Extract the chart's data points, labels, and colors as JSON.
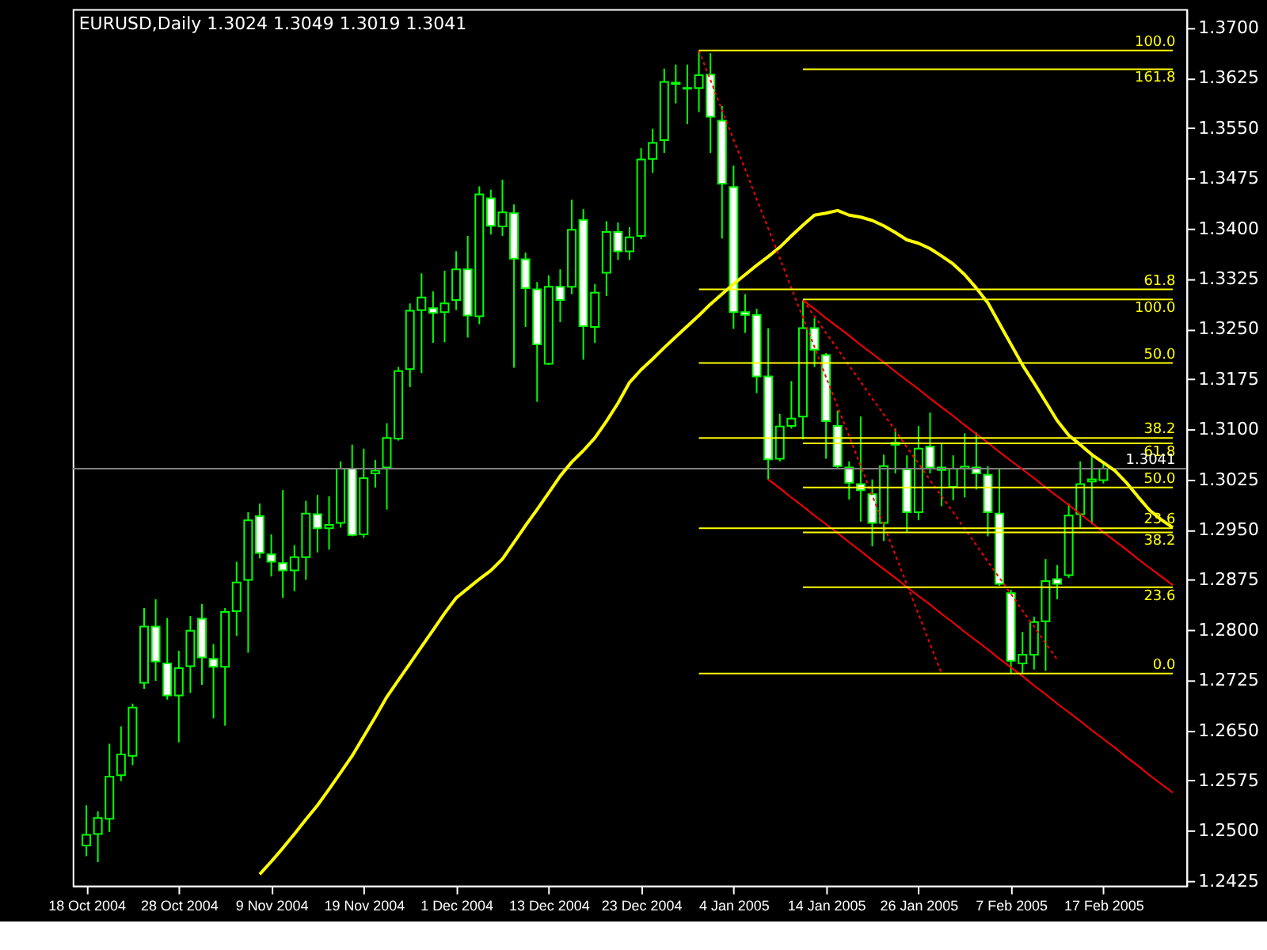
{
  "chart_data": {
    "type": "candlestick",
    "title": "EURUSD,Daily  1.3024 1.3049 1.3019 1.3041",
    "color": "#00ff00",
    "categories": [
      "18 Oct 2004",
      null,
      null,
      null,
      null,
      null,
      null,
      null,
      "28 Oct 2004",
      null,
      null,
      null,
      null,
      null,
      null,
      null,
      "9 Nov 2004",
      null,
      null,
      null,
      null,
      null,
      null,
      null,
      "19 Nov 2004",
      null,
      null,
      null,
      null,
      null,
      null,
      null,
      "1 Dec 2004",
      null,
      null,
      null,
      null,
      null,
      null,
      null,
      "13 Dec 2004",
      null,
      null,
      null,
      null,
      null,
      null,
      null,
      "23 Dec 2004",
      null,
      null,
      null,
      null,
      null,
      null,
      null,
      "4 Jan 2005",
      null,
      null,
      null,
      null,
      null,
      null,
      null,
      "14 Jan 2005",
      null,
      null,
      null,
      null,
      null,
      null,
      null,
      "26 Jan 2005",
      null,
      null,
      null,
      null,
      null,
      null,
      null,
      "7 Feb 2005",
      null,
      null,
      null,
      null,
      null,
      null,
      null,
      "17 Feb 2005",
      null,
      null,
      null,
      null,
      null,
      null
    ],
    "ohlc": [
      [
        1.2478,
        1.2538,
        1.2462,
        1.2494
      ],
      [
        1.2495,
        1.2529,
        1.2453,
        1.2519
      ],
      [
        1.2518,
        1.263,
        1.2498,
        1.2581
      ],
      [
        1.2583,
        1.2656,
        1.2574,
        1.2614
      ],
      [
        1.2612,
        1.269,
        1.2598,
        1.2684
      ],
      [
        1.2721,
        1.2833,
        1.2712,
        1.2805
      ],
      [
        1.2805,
        1.2846,
        1.2724,
        1.2753
      ],
      [
        1.275,
        1.2818,
        1.2696,
        1.2702
      ],
      [
        1.2702,
        1.2769,
        1.2632,
        1.2743
      ],
      [
        1.2746,
        1.2821,
        1.2706,
        1.2799
      ],
      [
        1.2817,
        1.2839,
        1.2718,
        1.2759
      ],
      [
        1.2757,
        1.2779,
        1.2668,
        1.2745
      ],
      [
        1.2745,
        1.2833,
        1.2657,
        1.2827
      ],
      [
        1.2828,
        1.2902,
        1.2791,
        1.2871
      ],
      [
        1.2875,
        1.2976,
        1.2766,
        1.2964
      ],
      [
        1.297,
        1.2989,
        1.2907,
        1.2915
      ],
      [
        1.2913,
        1.2943,
        1.288,
        1.2902
      ],
      [
        1.29,
        1.3009,
        1.2848,
        1.2889
      ],
      [
        1.2889,
        1.2927,
        1.2858,
        1.2909
      ],
      [
        1.2909,
        1.2993,
        1.2875,
        1.2974
      ],
      [
        1.2973,
        1.3002,
        1.2916,
        1.2952
      ],
      [
        1.2952,
        1.3,
        1.292,
        1.2957
      ],
      [
        1.296,
        1.3052,
        1.2953,
        1.3041
      ],
      [
        1.3041,
        1.3077,
        1.294,
        1.2942
      ],
      [
        1.2943,
        1.3071,
        1.2938,
        1.3027
      ],
      [
        1.3034,
        1.3054,
        1.3013,
        1.3038
      ],
      [
        1.3043,
        1.3109,
        1.298,
        1.3087
      ],
      [
        1.3086,
        1.3193,
        1.3083,
        1.3187
      ],
      [
        1.319,
        1.3288,
        1.3163,
        1.3277
      ],
      [
        1.3278,
        1.3333,
        1.3184,
        1.3297
      ],
      [
        1.3281,
        1.3306,
        1.3229,
        1.3274
      ],
      [
        1.3275,
        1.3337,
        1.323,
        1.3288
      ],
      [
        1.3293,
        1.3366,
        1.3278,
        1.3339
      ],
      [
        1.3339,
        1.3389,
        1.3237,
        1.327
      ],
      [
        1.3269,
        1.3463,
        1.3257,
        1.3451
      ],
      [
        1.3445,
        1.3458,
        1.3391,
        1.3404
      ],
      [
        1.3403,
        1.3473,
        1.3389,
        1.3424
      ],
      [
        1.3423,
        1.3436,
        1.3192,
        1.3355
      ],
      [
        1.3354,
        1.3364,
        1.3253,
        1.3311
      ],
      [
        1.3309,
        1.332,
        1.3141,
        1.3227
      ],
      [
        1.3198,
        1.333,
        1.3196,
        1.3313
      ],
      [
        1.3313,
        1.3339,
        1.326,
        1.3293
      ],
      [
        1.3313,
        1.3443,
        1.3302,
        1.3398
      ],
      [
        1.3413,
        1.3429,
        1.3204,
        1.3254
      ],
      [
        1.3253,
        1.3317,
        1.3229,
        1.3304
      ],
      [
        1.3334,
        1.3411,
        1.3299,
        1.3395
      ],
      [
        1.3395,
        1.3409,
        1.3353,
        1.3366
      ],
      [
        1.3366,
        1.3402,
        1.3353,
        1.3387
      ],
      [
        1.3389,
        1.352,
        1.3384,
        1.3503
      ],
      [
        1.3504,
        1.3549,
        1.3483,
        1.3528
      ],
      [
        1.3532,
        1.3639,
        1.3513,
        1.3619
      ],
      [
        1.3616,
        1.3645,
        1.3587,
        1.3618
      ],
      [
        1.361,
        1.3645,
        1.3556,
        1.3609
      ],
      [
        1.361,
        1.3666,
        1.3574,
        1.3629
      ],
      [
        1.363,
        1.3662,
        1.3513,
        1.3567
      ],
      [
        1.3561,
        1.3583,
        1.3385,
        1.3467
      ],
      [
        1.3462,
        1.3494,
        1.325,
        1.3275
      ],
      [
        1.3275,
        1.3302,
        1.3244,
        1.3271
      ],
      [
        1.3271,
        1.328,
        1.3154,
        1.3179
      ],
      [
        1.3179,
        1.3251,
        1.3025,
        1.3055
      ],
      [
        1.3056,
        1.3123,
        1.3052,
        1.3104
      ],
      [
        1.3105,
        1.3172,
        1.3101,
        1.3116
      ],
      [
        1.3119,
        1.3293,
        1.3085,
        1.3251
      ],
      [
        1.3251,
        1.3266,
        1.3193,
        1.3219
      ],
      [
        1.3211,
        1.3214,
        1.3056,
        1.3112
      ],
      [
        1.3105,
        1.3128,
        1.3041,
        1.3045
      ],
      [
        1.3043,
        1.3052,
        1.2995,
        1.302
      ],
      [
        1.3018,
        1.3119,
        1.2962,
        1.3009
      ],
      [
        1.3003,
        1.3025,
        1.2925,
        1.296
      ],
      [
        1.296,
        1.3062,
        1.2933,
        1.3045
      ],
      [
        1.3077,
        1.3101,
        1.3034,
        1.308
      ],
      [
        1.304,
        1.3061,
        1.2946,
        1.2976
      ],
      [
        1.2976,
        1.3105,
        1.2964,
        1.3071
      ],
      [
        1.3074,
        1.3125,
        1.3034,
        1.3043
      ],
      [
        1.3043,
        1.308,
        1.2985,
        1.3039
      ],
      [
        1.3014,
        1.3061,
        1.2994,
        1.3041
      ],
      [
        1.3041,
        1.3094,
        1.2998,
        1.3044
      ],
      [
        1.3043,
        1.3095,
        1.301,
        1.3034
      ],
      [
        1.3032,
        1.3045,
        1.294,
        1.2976
      ],
      [
        1.2974,
        1.3041,
        1.2866,
        1.2869
      ],
      [
        1.2855,
        1.286,
        1.2735,
        1.2754
      ],
      [
        1.275,
        1.2797,
        1.2735,
        1.2763
      ],
      [
        1.2763,
        1.282,
        1.2741,
        1.2812
      ],
      [
        1.2813,
        1.2906,
        1.2739,
        1.2873
      ],
      [
        1.2876,
        1.2897,
        1.2846,
        1.2869
      ],
      [
        1.2882,
        1.2989,
        1.2878,
        1.2971
      ],
      [
        1.2973,
        1.3052,
        1.2953,
        1.3018
      ],
      [
        1.3022,
        1.3061,
        1.2958,
        1.3025
      ],
      [
        1.3024,
        1.3049,
        1.3019,
        1.3041
      ],
      null,
      null,
      null,
      null,
      null,
      null
    ],
    "series": [
      {
        "type": "line",
        "color": "#ffff00",
        "values": [
          null,
          null,
          null,
          null,
          null,
          null,
          null,
          null,
          null,
          null,
          null,
          null,
          null,
          null,
          null,
          1.2435,
          1.2454,
          1.2474,
          1.2495,
          1.2517,
          1.2538,
          1.2562,
          1.2587,
          1.2612,
          1.2641,
          1.267,
          1.27,
          1.2725,
          1.275,
          1.2775,
          1.28,
          1.2825,
          1.2848,
          1.2862,
          1.2876,
          1.2889,
          1.2906,
          1.2931,
          1.2956,
          1.298,
          1.3005,
          1.303,
          1.3051,
          1.3068,
          1.3087,
          1.3112,
          1.3139,
          1.317,
          1.3189,
          1.3205,
          1.3222,
          1.3238,
          1.3254,
          1.327,
          1.3287,
          1.3302,
          1.3317,
          1.3331,
          1.3345,
          1.3358,
          1.3372,
          1.3389,
          1.3405,
          1.342,
          1.3423,
          1.3427,
          1.342,
          1.3417,
          1.3412,
          1.3404,
          1.3394,
          1.3383,
          1.3378,
          1.337,
          1.3359,
          1.3347,
          1.3331,
          1.3311,
          1.3289,
          1.3258,
          1.3227,
          1.3196,
          1.3169,
          1.3141,
          1.3113,
          1.3091,
          1.3077,
          1.3062,
          1.305,
          1.3038,
          1.302,
          1.2999,
          1.2979,
          1.2965,
          1.2953
        ]
      },
      {
        "type": "line",
        "color": "#ff0000",
        "line_style": "dotted",
        "values": [
          null,
          null,
          null,
          null,
          null,
          null,
          null,
          null,
          null,
          null,
          null,
          null,
          null,
          null,
          null,
          null,
          null,
          null,
          null,
          null,
          null,
          null,
          null,
          null,
          null,
          null,
          null,
          null,
          null,
          null,
          null,
          null,
          null,
          null,
          null,
          null,
          null,
          null,
          null,
          null,
          null,
          null,
          null,
          null,
          null,
          null,
          null,
          null,
          null,
          null,
          null,
          null,
          null,
          1.3666,
          1.3622,
          1.3577,
          1.3533,
          1.3489,
          1.3444,
          1.34,
          1.3356,
          1.3311,
          1.3267,
          1.3223,
          1.3178,
          1.3134,
          1.309,
          1.3045,
          1.3001,
          1.2957,
          1.2912,
          1.2868,
          1.2824,
          1.2779,
          1.2735,
          null,
          null,
          null,
          null,
          null,
          null,
          null,
          null,
          null,
          null,
          null,
          null,
          null,
          null,
          null,
          null,
          null,
          null,
          null,
          null
        ]
      },
      {
        "type": "line",
        "color": "#ff0000",
        "line_style": "dotted",
        "values": [
          null,
          null,
          null,
          null,
          null,
          null,
          null,
          null,
          null,
          null,
          null,
          null,
          null,
          null,
          null,
          null,
          null,
          null,
          null,
          null,
          null,
          null,
          null,
          null,
          null,
          null,
          null,
          null,
          null,
          null,
          null,
          null,
          null,
          null,
          null,
          null,
          null,
          null,
          null,
          null,
          null,
          null,
          null,
          null,
          null,
          null,
          null,
          null,
          null,
          null,
          null,
          null,
          null,
          null,
          null,
          null,
          null,
          null,
          null,
          null,
          null,
          null,
          1.3293,
          1.3269,
          1.3244,
          1.322,
          1.3195,
          1.3171,
          1.3146,
          1.3122,
          1.3098,
          1.3073,
          1.3049,
          1.3024,
          1.3,
          1.2976,
          1.2951,
          1.2927,
          1.2902,
          1.2878,
          1.2854,
          1.2829,
          1.2805,
          1.278,
          1.2756,
          null,
          null,
          null,
          null,
          null,
          null,
          null,
          null,
          null,
          null
        ]
      },
      {
        "type": "line",
        "color": "#ff0000",
        "line_style": "solid",
        "values": [
          null,
          null,
          null,
          null,
          null,
          null,
          null,
          null,
          null,
          null,
          null,
          null,
          null,
          null,
          null,
          null,
          null,
          null,
          null,
          null,
          null,
          null,
          null,
          null,
          null,
          null,
          null,
          null,
          null,
          null,
          null,
          null,
          null,
          null,
          null,
          null,
          null,
          null,
          null,
          null,
          null,
          null,
          null,
          null,
          null,
          null,
          null,
          null,
          null,
          null,
          null,
          null,
          null,
          null,
          null,
          null,
          null,
          null,
          null,
          null,
          null,
          null,
          1.3293,
          1.328,
          1.3266,
          1.3253,
          1.324,
          1.3226,
          1.3213,
          1.32,
          1.3186,
          1.3173,
          1.316,
          1.3146,
          1.3133,
          1.312,
          1.3106,
          1.3093,
          1.308,
          1.3066,
          1.3053,
          1.304,
          1.3027,
          1.3013,
          1.3,
          1.2987,
          1.2973,
          1.296,
          1.2946,
          1.2933,
          1.292,
          1.2906,
          1.2893,
          1.288,
          1.2867
        ]
      },
      {
        "type": "line",
        "color": "#ff0000",
        "line_style": "solid",
        "values": [
          null,
          null,
          null,
          null,
          null,
          null,
          null,
          null,
          null,
          null,
          null,
          null,
          null,
          null,
          null,
          null,
          null,
          null,
          null,
          null,
          null,
          null,
          null,
          null,
          null,
          null,
          null,
          null,
          null,
          null,
          null,
          null,
          null,
          null,
          null,
          null,
          null,
          null,
          null,
          null,
          null,
          null,
          null,
          null,
          null,
          null,
          null,
          null,
          null,
          null,
          null,
          null,
          null,
          null,
          null,
          null,
          null,
          null,
          null,
          1.3025,
          1.3012,
          1.2998,
          1.2985,
          1.2971,
          1.2958,
          1.2945,
          1.2931,
          1.2918,
          1.2904,
          1.2891,
          1.2878,
          1.2864,
          1.2851,
          1.2838,
          1.2824,
          1.2811,
          1.2797,
          1.2784,
          1.2771,
          1.2757,
          1.2744,
          1.2731,
          1.2717,
          1.2704,
          1.269,
          1.2677,
          1.2664,
          1.265,
          1.2637,
          1.2624,
          1.261,
          1.2597,
          1.2583,
          1.257,
          1.2557
        ]
      },
      {
        "type": "line",
        "name": "100.0",
        "color": "#ffff00",
        "values": [
          null,
          null,
          null,
          null,
          null,
          null,
          null,
          null,
          null,
          null,
          null,
          null,
          null,
          null,
          null,
          null,
          null,
          null,
          null,
          null,
          null,
          null,
          null,
          null,
          null,
          null,
          null,
          null,
          null,
          null,
          null,
          null,
          null,
          null,
          null,
          null,
          null,
          null,
          null,
          null,
          null,
          null,
          null,
          null,
          null,
          null,
          null,
          null,
          null,
          null,
          null,
          null,
          null,
          1.3666,
          1.3666,
          1.3666,
          1.3666,
          1.3666,
          1.3666,
          1.3666,
          1.3666,
          1.3666,
          1.3666,
          1.3666,
          1.3666,
          1.3666,
          1.3666,
          1.3666,
          1.3666,
          1.3666,
          1.3666,
          1.3666,
          1.3666,
          1.3666,
          1.3666,
          1.3666,
          1.3666,
          1.3666,
          1.3666,
          1.3666,
          1.3666,
          1.3666,
          1.3666,
          1.3666,
          1.3666,
          1.3666,
          1.3666,
          1.3666,
          1.3666,
          1.3666,
          1.3666,
          1.3666,
          1.3666,
          1.3666,
          1.3666
        ]
      },
      {
        "type": "line",
        "name": "161.8",
        "color": "#ffff00",
        "values": [
          null,
          null,
          null,
          null,
          null,
          null,
          null,
          null,
          null,
          null,
          null,
          null,
          null,
          null,
          null,
          null,
          null,
          null,
          null,
          null,
          null,
          null,
          null,
          null,
          null,
          null,
          null,
          null,
          null,
          null,
          null,
          null,
          null,
          null,
          null,
          null,
          null,
          null,
          null,
          null,
          null,
          null,
          null,
          null,
          null,
          null,
          null,
          null,
          null,
          null,
          null,
          null,
          null,
          null,
          null,
          null,
          null,
          null,
          null,
          null,
          null,
          null,
          1.3638,
          1.3638,
          1.3638,
          1.3638,
          1.3638,
          1.3638,
          1.3638,
          1.3638,
          1.3638,
          1.3638,
          1.3638,
          1.3638,
          1.3638,
          1.3638,
          1.3638,
          1.3638,
          1.3638,
          1.3638,
          1.3638,
          1.3638,
          1.3638,
          1.3638,
          1.3638,
          1.3638,
          1.3638,
          1.3638,
          1.3638,
          1.3638,
          1.3638,
          1.3638,
          1.3638,
          1.3638,
          1.3638
        ]
      },
      {
        "type": "line",
        "name": "61.8",
        "color": "#ffff00",
        "values": [
          null,
          null,
          null,
          null,
          null,
          null,
          null,
          null,
          null,
          null,
          null,
          null,
          null,
          null,
          null,
          null,
          null,
          null,
          null,
          null,
          null,
          null,
          null,
          null,
          null,
          null,
          null,
          null,
          null,
          null,
          null,
          null,
          null,
          null,
          null,
          null,
          null,
          null,
          null,
          null,
          null,
          null,
          null,
          null,
          null,
          null,
          null,
          null,
          null,
          null,
          null,
          null,
          null,
          1.3309,
          1.3309,
          1.3309,
          1.3309,
          1.3309,
          1.3309,
          1.3309,
          1.3309,
          1.3309,
          1.3309,
          1.3309,
          1.3309,
          1.3309,
          1.3309,
          1.3309,
          1.3309,
          1.3309,
          1.3309,
          1.3309,
          1.3309,
          1.3309,
          1.3309,
          1.3309,
          1.3309,
          1.3309,
          1.3309,
          1.3309,
          1.3309,
          1.3309,
          1.3309,
          1.3309,
          1.3309,
          1.3309,
          1.3309,
          1.3309,
          1.3309,
          1.3309,
          1.3309,
          1.3309,
          1.3309,
          1.3309,
          1.3309
        ]
      },
      {
        "type": "line",
        "name": "100.0",
        "color": "#ffff00",
        "values": [
          null,
          null,
          null,
          null,
          null,
          null,
          null,
          null,
          null,
          null,
          null,
          null,
          null,
          null,
          null,
          null,
          null,
          null,
          null,
          null,
          null,
          null,
          null,
          null,
          null,
          null,
          null,
          null,
          null,
          null,
          null,
          null,
          null,
          null,
          null,
          null,
          null,
          null,
          null,
          null,
          null,
          null,
          null,
          null,
          null,
          null,
          null,
          null,
          null,
          null,
          null,
          null,
          null,
          null,
          null,
          null,
          null,
          null,
          null,
          null,
          null,
          null,
          1.3294,
          1.3294,
          1.3294,
          1.3294,
          1.3294,
          1.3294,
          1.3294,
          1.3294,
          1.3294,
          1.3294,
          1.3294,
          1.3294,
          1.3294,
          1.3294,
          1.3294,
          1.3294,
          1.3294,
          1.3294,
          1.3294,
          1.3294,
          1.3294,
          1.3294,
          1.3294,
          1.3294,
          1.3294,
          1.3294,
          1.3294,
          1.3294,
          1.3294,
          1.3294,
          1.3294,
          1.3294,
          1.3294
        ]
      },
      {
        "type": "line",
        "name": "50.0",
        "color": "#ffff00",
        "values": [
          null,
          null,
          null,
          null,
          null,
          null,
          null,
          null,
          null,
          null,
          null,
          null,
          null,
          null,
          null,
          null,
          null,
          null,
          null,
          null,
          null,
          null,
          null,
          null,
          null,
          null,
          null,
          null,
          null,
          null,
          null,
          null,
          null,
          null,
          null,
          null,
          null,
          null,
          null,
          null,
          null,
          null,
          null,
          null,
          null,
          null,
          null,
          null,
          null,
          null,
          null,
          null,
          null,
          1.3199,
          1.3199,
          1.3199,
          1.3199,
          1.3199,
          1.3199,
          1.3199,
          1.3199,
          1.3199,
          1.3199,
          1.3199,
          1.3199,
          1.3199,
          1.3199,
          1.3199,
          1.3199,
          1.3199,
          1.3199,
          1.3199,
          1.3199,
          1.3199,
          1.3199,
          1.3199,
          1.3199,
          1.3199,
          1.3199,
          1.3199,
          1.3199,
          1.3199,
          1.3199,
          1.3199,
          1.3199,
          1.3199,
          1.3199,
          1.3199,
          1.3199,
          1.3199,
          1.3199,
          1.3199,
          1.3199,
          1.3199,
          1.3199
        ]
      },
      {
        "type": "line",
        "name": "38.2",
        "color": "#ffff00",
        "values": [
          null,
          null,
          null,
          null,
          null,
          null,
          null,
          null,
          null,
          null,
          null,
          null,
          null,
          null,
          null,
          null,
          null,
          null,
          null,
          null,
          null,
          null,
          null,
          null,
          null,
          null,
          null,
          null,
          null,
          null,
          null,
          null,
          null,
          null,
          null,
          null,
          null,
          null,
          null,
          null,
          null,
          null,
          null,
          null,
          null,
          null,
          null,
          null,
          null,
          null,
          null,
          null,
          null,
          1.3087,
          1.3087,
          1.3087,
          1.3087,
          1.3087,
          1.3087,
          1.3087,
          1.3087,
          1.3087,
          1.3087,
          1.3087,
          1.3087,
          1.3087,
          1.3087,
          1.3087,
          1.3087,
          1.3087,
          1.3087,
          1.3087,
          1.3087,
          1.3087,
          1.3087,
          1.3087,
          1.3087,
          1.3087,
          1.3087,
          1.3087,
          1.3087,
          1.3087,
          1.3087,
          1.3087,
          1.3087,
          1.3087,
          1.3087,
          1.3087,
          1.3087,
          1.3087,
          1.3087,
          1.3087,
          1.3087,
          1.3087,
          1.3087
        ]
      },
      {
        "type": "line",
        "name": "61.8",
        "color": "#ffff00",
        "values": [
          null,
          null,
          null,
          null,
          null,
          null,
          null,
          null,
          null,
          null,
          null,
          null,
          null,
          null,
          null,
          null,
          null,
          null,
          null,
          null,
          null,
          null,
          null,
          null,
          null,
          null,
          null,
          null,
          null,
          null,
          null,
          null,
          null,
          null,
          null,
          null,
          null,
          null,
          null,
          null,
          null,
          null,
          null,
          null,
          null,
          null,
          null,
          null,
          null,
          null,
          null,
          null,
          null,
          null,
          null,
          null,
          null,
          null,
          null,
          null,
          null,
          null,
          1.3079,
          1.3079,
          1.3079,
          1.3079,
          1.3079,
          1.3079,
          1.3079,
          1.3079,
          1.3079,
          1.3079,
          1.3079,
          1.3079,
          1.3079,
          1.3079,
          1.3079,
          1.3079,
          1.3079,
          1.3079,
          1.3079,
          1.3079,
          1.3079,
          1.3079,
          1.3079,
          1.3079,
          1.3079,
          1.3079,
          1.3079,
          1.3079,
          1.3079,
          1.3079,
          1.3079,
          1.3079,
          1.3079
        ]
      },
      {
        "type": "line",
        "name": "50.0",
        "color": "#ffff00",
        "values": [
          null,
          null,
          null,
          null,
          null,
          null,
          null,
          null,
          null,
          null,
          null,
          null,
          null,
          null,
          null,
          null,
          null,
          null,
          null,
          null,
          null,
          null,
          null,
          null,
          null,
          null,
          null,
          null,
          null,
          null,
          null,
          null,
          null,
          null,
          null,
          null,
          null,
          null,
          null,
          null,
          null,
          null,
          null,
          null,
          null,
          null,
          null,
          null,
          null,
          null,
          null,
          null,
          null,
          null,
          null,
          null,
          null,
          null,
          null,
          null,
          null,
          null,
          1.3013,
          1.3013,
          1.3013,
          1.3013,
          1.3013,
          1.3013,
          1.3013,
          1.3013,
          1.3013,
          1.3013,
          1.3013,
          1.3013,
          1.3013,
          1.3013,
          1.3013,
          1.3013,
          1.3013,
          1.3013,
          1.3013,
          1.3013,
          1.3013,
          1.3013,
          1.3013,
          1.3013,
          1.3013,
          1.3013,
          1.3013,
          1.3013,
          1.3013,
          1.3013,
          1.3013,
          1.3013,
          1.3013
        ]
      },
      {
        "type": "line",
        "name": "23.6",
        "color": "#ffff00",
        "values": [
          null,
          null,
          null,
          null,
          null,
          null,
          null,
          null,
          null,
          null,
          null,
          null,
          null,
          null,
          null,
          null,
          null,
          null,
          null,
          null,
          null,
          null,
          null,
          null,
          null,
          null,
          null,
          null,
          null,
          null,
          null,
          null,
          null,
          null,
          null,
          null,
          null,
          null,
          null,
          null,
          null,
          null,
          null,
          null,
          null,
          null,
          null,
          null,
          null,
          null,
          null,
          null,
          null,
          1.2952,
          1.2952,
          1.2952,
          1.2952,
          1.2952,
          1.2952,
          1.2952,
          1.2952,
          1.2952,
          1.2952,
          1.2952,
          1.2952,
          1.2952,
          1.2952,
          1.2952,
          1.2952,
          1.2952,
          1.2952,
          1.2952,
          1.2952,
          1.2952,
          1.2952,
          1.2952,
          1.2952,
          1.2952,
          1.2952,
          1.2952,
          1.2952,
          1.2952,
          1.2952,
          1.2952,
          1.2952,
          1.2952,
          1.2952,
          1.2952,
          1.2952,
          1.2952,
          1.2952,
          1.2952,
          1.2952,
          1.2952,
          1.2952
        ]
      },
      {
        "type": "line",
        "name": "38.2",
        "color": "#ffff00",
        "values": [
          null,
          null,
          null,
          null,
          null,
          null,
          null,
          null,
          null,
          null,
          null,
          null,
          null,
          null,
          null,
          null,
          null,
          null,
          null,
          null,
          null,
          null,
          null,
          null,
          null,
          null,
          null,
          null,
          null,
          null,
          null,
          null,
          null,
          null,
          null,
          null,
          null,
          null,
          null,
          null,
          null,
          null,
          null,
          null,
          null,
          null,
          null,
          null,
          null,
          null,
          null,
          null,
          null,
          null,
          null,
          null,
          null,
          null,
          null,
          null,
          null,
          null,
          1.2946,
          1.2946,
          1.2946,
          1.2946,
          1.2946,
          1.2946,
          1.2946,
          1.2946,
          1.2946,
          1.2946,
          1.2946,
          1.2946,
          1.2946,
          1.2946,
          1.2946,
          1.2946,
          1.2946,
          1.2946,
          1.2946,
          1.2946,
          1.2946,
          1.2946,
          1.2946,
          1.2946,
          1.2946,
          1.2946,
          1.2946,
          1.2946,
          1.2946,
          1.2946,
          1.2946,
          1.2946,
          1.2946
        ]
      },
      {
        "type": "line",
        "name": "23.6",
        "color": "#ffff00",
        "values": [
          null,
          null,
          null,
          null,
          null,
          null,
          null,
          null,
          null,
          null,
          null,
          null,
          null,
          null,
          null,
          null,
          null,
          null,
          null,
          null,
          null,
          null,
          null,
          null,
          null,
          null,
          null,
          null,
          null,
          null,
          null,
          null,
          null,
          null,
          null,
          null,
          null,
          null,
          null,
          null,
          null,
          null,
          null,
          null,
          null,
          null,
          null,
          null,
          null,
          null,
          null,
          null,
          null,
          null,
          null,
          null,
          null,
          null,
          null,
          null,
          null,
          null,
          1.2864,
          1.2864,
          1.2864,
          1.2864,
          1.2864,
          1.2864,
          1.2864,
          1.2864,
          1.2864,
          1.2864,
          1.2864,
          1.2864,
          1.2864,
          1.2864,
          1.2864,
          1.2864,
          1.2864,
          1.2864,
          1.2864,
          1.2864,
          1.2864,
          1.2864,
          1.2864,
          1.2864,
          1.2864,
          1.2864,
          1.2864,
          1.2864,
          1.2864,
          1.2864,
          1.2864,
          1.2864,
          1.2864
        ]
      },
      {
        "type": "line",
        "name": "0.0",
        "color": "#ffff00",
        "values": [
          null,
          null,
          null,
          null,
          null,
          null,
          null,
          null,
          null,
          null,
          null,
          null,
          null,
          null,
          null,
          null,
          null,
          null,
          null,
          null,
          null,
          null,
          null,
          null,
          null,
          null,
          null,
          null,
          null,
          null,
          null,
          null,
          null,
          null,
          null,
          null,
          null,
          null,
          null,
          null,
          null,
          null,
          null,
          null,
          null,
          null,
          null,
          null,
          null,
          null,
          null,
          null,
          null,
          1.2735,
          1.2735,
          1.2735,
          1.2735,
          1.2735,
          1.2735,
          1.2735,
          1.2735,
          1.2735,
          1.2735,
          1.2735,
          1.2735,
          1.2735,
          1.2735,
          1.2735,
          1.2735,
          1.2735,
          1.2735,
          1.2735,
          1.2735,
          1.2735,
          1.2735,
          1.2735,
          1.2735,
          1.2735,
          1.2735,
          1.2735,
          1.2735,
          1.2735,
          1.2735,
          1.2735,
          1.2735,
          1.2735,
          1.2735,
          1.2735,
          1.2735,
          1.2735,
          1.2735,
          1.2735,
          1.2735,
          1.2735,
          1.2735
        ]
      }
    ],
    "ref_lines": [
      {
        "axis": "y",
        "value": 1.3041,
        "label": "1.3041",
        "color": "#808080"
      }
    ],
    "ylim": [
      1.2418,
      1.3728
    ],
    "yticks": [
      {
        "value": 1.37,
        "label": "1.3700"
      },
      1.3625,
      {
        "value": 1.355,
        "label": "1.3550"
      },
      1.3475,
      {
        "value": 1.34,
        "label": "1.3400"
      },
      1.3325,
      {
        "value": 1.325,
        "label": "1.3250"
      },
      1.3175,
      {
        "value": 1.31,
        "label": "1.3100"
      },
      1.3025,
      {
        "value": 1.295,
        "label": "1.2950"
      },
      1.2875,
      {
        "value": 1.28,
        "label": "1.2800"
      },
      1.2725,
      {
        "value": 1.265,
        "label": "1.2650"
      },
      1.2575,
      {
        "value": 1.25,
        "label": "1.2500"
      },
      1.2425
    ]
  }
}
